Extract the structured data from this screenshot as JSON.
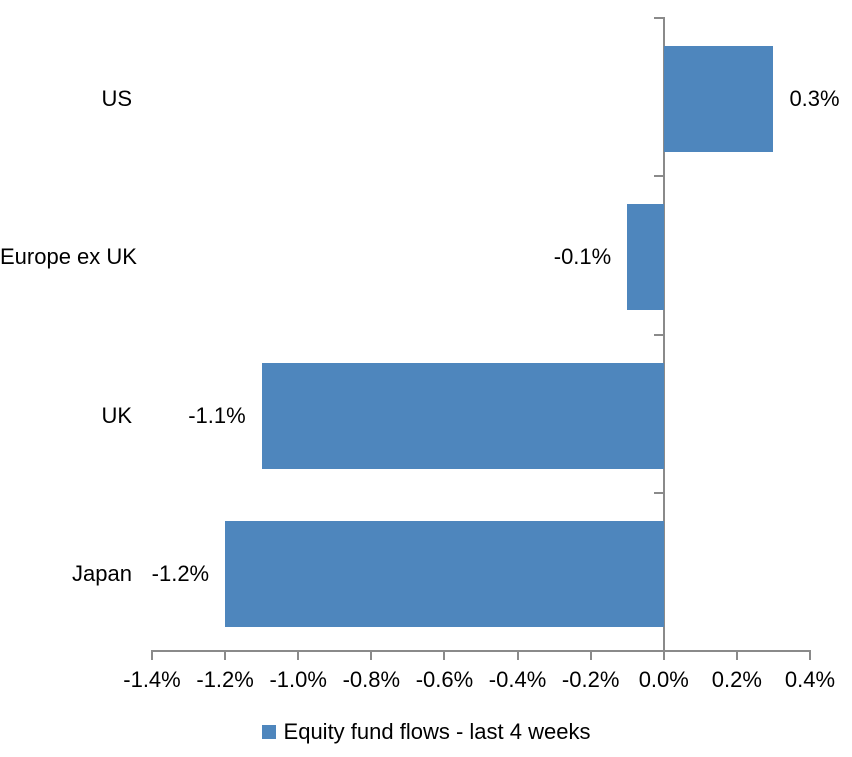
{
  "chart_data": {
    "type": "bar",
    "orientation": "horizontal",
    "categories": [
      "US",
      "Europe ex UK",
      "UK",
      "Japan"
    ],
    "series": [
      {
        "name": "Equity fund flows - last 4 weeks",
        "values": [
          0.3,
          -0.1,
          -1.1,
          -1.2
        ],
        "data_labels": [
          "0.3%",
          "-0.1%",
          "-1.1%",
          "-1.2%"
        ],
        "color": "#4E86BD"
      }
    ],
    "xlim": [
      -1.4,
      0.4
    ],
    "x_ticks": [
      -1.4,
      -1.2,
      -1.0,
      -0.8,
      -0.6,
      -0.4,
      -0.2,
      0.0,
      0.2,
      0.4
    ],
    "x_tick_labels": [
      "-1.4%",
      "-1.2%",
      "-1.0%",
      "-0.8%",
      "-0.6%",
      "-0.4%",
      "-0.2%",
      "0.0%",
      "0.2%",
      "0.4%"
    ],
    "grid": false,
    "legend_position": "bottom",
    "data_label_position": "outside-end",
    "axis_color": "#8A8A8A",
    "text_color": "#000000",
    "background_color": "#FFFFFF"
  },
  "legend": {
    "label": "Equity fund flows - last 4 weeks",
    "swatch_color": "#4E86BD"
  }
}
